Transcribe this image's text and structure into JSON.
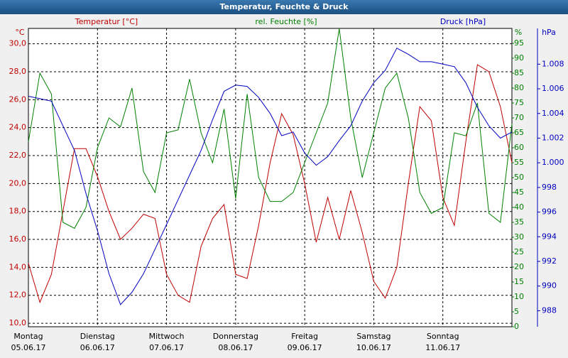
{
  "chart_data": {
    "type": "line",
    "title": "Temperatur, Feuchte & Druck",
    "ylabel": "Temperatur [°C]",
    "yunit": "°C",
    "y2label": "rel. Feuchte [%]",
    "y2unit": "%",
    "y3label": "Druck [hPa]",
    "y3unit": "hPa",
    "x": [
      0,
      4,
      8,
      12,
      16,
      20,
      24,
      28,
      32,
      36,
      40,
      44,
      48,
      52,
      56,
      60,
      64,
      68,
      72,
      76,
      80,
      84,
      88,
      92,
      96,
      100,
      104,
      108,
      112,
      116,
      120,
      124,
      128,
      132,
      136,
      140,
      144,
      148,
      152,
      156,
      160,
      164,
      168
    ],
    "xlim": [
      0,
      168
    ],
    "xticks": [
      {
        "value": 0,
        "label": "Montag"
      },
      {
        "value": 24,
        "label": "Dienstag"
      },
      {
        "value": 48,
        "label": "Mittwoch"
      },
      {
        "value": 72,
        "label": "Donnerstag"
      },
      {
        "value": 96,
        "label": "Freitag"
      },
      {
        "value": 120,
        "label": "Samstag"
      },
      {
        "value": 144,
        "label": "Sonntag"
      }
    ],
    "xtick_dates": [
      "05.06.17",
      "06.06.17",
      "07.06.17",
      "08.06.17",
      "09.06.17",
      "10.06.17",
      "11.06.17"
    ],
    "ylim": [
      9.75,
      31.1
    ],
    "yticks": [
      {
        "value": 10,
        "label": "10,0"
      },
      {
        "value": 12,
        "label": "12,0"
      },
      {
        "value": 14,
        "label": "14,0"
      },
      {
        "value": 16,
        "label": "16,0"
      },
      {
        "value": 18,
        "label": "18,0"
      },
      {
        "value": 20,
        "label": "20,0"
      },
      {
        "value": 22,
        "label": "22,0"
      },
      {
        "value": 24,
        "label": "24,0"
      },
      {
        "value": 26,
        "label": "26,0"
      },
      {
        "value": 28,
        "label": "28,0"
      },
      {
        "value": 30,
        "label": "30,0"
      }
    ],
    "y2lim": [
      0,
      100
    ],
    "y2ticks": [
      0,
      5,
      10,
      15,
      20,
      25,
      30,
      35,
      40,
      45,
      50,
      55,
      60,
      65,
      70,
      75,
      80,
      85,
      90,
      95
    ],
    "y3lim": [
      986.7,
      1010.9
    ],
    "y3ticks": [
      988,
      990,
      992,
      994,
      996,
      998,
      {
        "value": 1000,
        "label": "1.000"
      },
      {
        "value": 1002,
        "label": "1.002"
      },
      {
        "value": 1004,
        "label": "1.004"
      },
      {
        "value": 1006,
        "label": "1.006"
      },
      {
        "value": 1008,
        "label": "1.008"
      }
    ],
    "grid": true,
    "series": [
      {
        "name": "Temperatur",
        "color": "#c00000",
        "axis": "y",
        "values": [
          14.3,
          11.5,
          13.5,
          18.0,
          22.5,
          22.5,
          20.5,
          18.0,
          16.0,
          16.8,
          17.8,
          17.5,
          13.5,
          12.0,
          11.5,
          15.5,
          17.5,
          18.5,
          13.5,
          13.2,
          17.0,
          21.5,
          25.0,
          23.5,
          20.0,
          15.8,
          19.0,
          16.0,
          19.5,
          16.5,
          13.0,
          11.8,
          14.0,
          20.0,
          25.5,
          24.5,
          19.0,
          17.0,
          23.0,
          28.5,
          28.0,
          25.5,
          21.5
        ]
      },
      {
        "name": "rel. Feuchte",
        "color": "#008000",
        "axis": "y2",
        "values": [
          62,
          85,
          78,
          35,
          33,
          40,
          60,
          70,
          67,
          80,
          52,
          45,
          65,
          66,
          83,
          65,
          55,
          73,
          43,
          78,
          50,
          42,
          42,
          45,
          55,
          65,
          75,
          100,
          70,
          50,
          65,
          80,
          85,
          70,
          45,
          38,
          40,
          65,
          64,
          75,
          38,
          35,
          68
        ]
      },
      {
        "name": "Druck",
        "color": "#0000c0",
        "axis": "y3",
        "values": [
          1005.4,
          1005.2,
          1005.0,
          1003.0,
          1001.0,
          997.5,
          994.5,
          991.0,
          988.5,
          989.5,
          991.0,
          993.0,
          995.0,
          997.0,
          999.0,
          1001.0,
          1003.5,
          1005.8,
          1006.3,
          1006.2,
          1005.3,
          1004.0,
          1002.2,
          1002.5,
          1000.8,
          999.8,
          1000.5,
          1001.8,
          1003.0,
          1005.0,
          1006.5,
          1007.5,
          1009.3,
          1008.8,
          1008.2,
          1008.2,
          1008.0,
          1007.8,
          1006.5,
          1004.5,
          1003.0,
          1002.0,
          1002.5
        ]
      }
    ]
  }
}
